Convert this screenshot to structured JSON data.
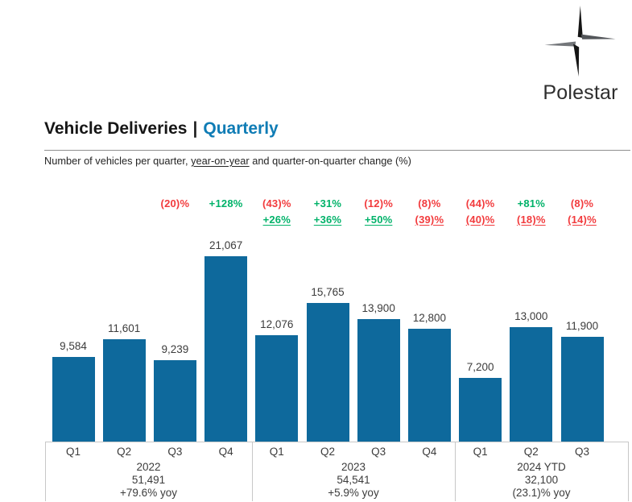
{
  "logo": {
    "brand": "Polestar"
  },
  "header": {
    "title": "Vehicle Deliveries",
    "separator": "|",
    "title_highlight": "Quarterly"
  },
  "subtitle": {
    "prefix": "Number of vehicles per quarter, ",
    "underlined": "year-on-year",
    "suffix": " and quarter-on-quarter change (%)"
  },
  "colors": {
    "bar": "#0e699c",
    "positive": "#00b269",
    "negative": "#f23b3d",
    "label_text": "#3c3c3c",
    "accent_blue": "#0f7cb5",
    "line_gray": "#c7c7c7"
  },
  "chart_data": {
    "type": "bar",
    "title": "Vehicle Deliveries | Quarterly",
    "xlabel": "",
    "ylabel": "Number of vehicles",
    "ylim": [
      0,
      21067
    ],
    "grid": false,
    "legend_position": "none",
    "annotation_note": "top row = quarter-on-quarter change, underlined row = year-on-year change",
    "bar_color": "#0e699c",
    "groups": [
      {
        "year": "2022",
        "total": "51,491",
        "yoy": "+79.6% yoy",
        "bars": [
          {
            "quarter": "Q1",
            "value": 9584,
            "label": "9,584",
            "qoq": null,
            "yoy": null
          },
          {
            "quarter": "Q2",
            "value": 11601,
            "label": "11,601",
            "qoq": null,
            "yoy": null
          },
          {
            "quarter": "Q3",
            "value": 9239,
            "label": "9,239",
            "qoq": "(20)%",
            "yoy": null
          },
          {
            "quarter": "Q4",
            "value": 21067,
            "label": "21,067",
            "qoq": "+128%",
            "yoy": null
          }
        ]
      },
      {
        "year": "2023",
        "total": "54,541",
        "yoy": "+5.9% yoy",
        "bars": [
          {
            "quarter": "Q1",
            "value": 12076,
            "label": "12,076",
            "qoq": "(43)%",
            "yoy": "+26%"
          },
          {
            "quarter": "Q2",
            "value": 15765,
            "label": "15,765",
            "qoq": "+31%",
            "yoy": "+36%"
          },
          {
            "quarter": "Q3",
            "value": 13900,
            "label": "13,900",
            "qoq": "(12)%",
            "yoy": "+50%"
          },
          {
            "quarter": "Q4",
            "value": 12800,
            "label": "12,800",
            "qoq": "(8)%",
            "yoy": "(39)%"
          }
        ]
      },
      {
        "year": "2024 YTD",
        "total": "32,100",
        "yoy": "(23.1)% yoy",
        "bars": [
          {
            "quarter": "Q1",
            "value": 7200,
            "label": "7,200",
            "qoq": "(44)%",
            "yoy": "(40)%"
          },
          {
            "quarter": "Q2",
            "value": 13000,
            "label": "13,000",
            "qoq": "+81%",
            "yoy": "(18)%"
          },
          {
            "quarter": "Q3",
            "value": 11900,
            "label": "11,900",
            "qoq": "(8)%",
            "yoy": "(14)%"
          }
        ]
      }
    ]
  }
}
